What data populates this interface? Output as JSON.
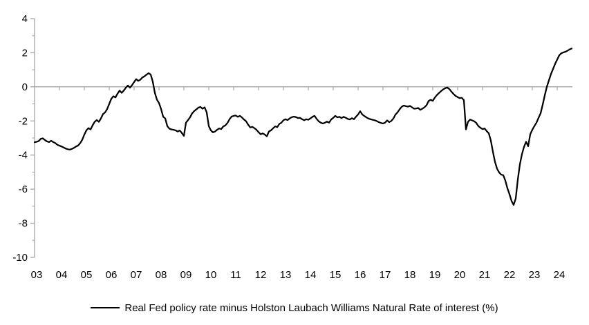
{
  "chart_data": {
    "type": "line",
    "frequency": "monthly",
    "x_start": "2003-01",
    "x_end": "2024-08",
    "x_tick_labels": [
      "03",
      "04",
      "05",
      "06",
      "07",
      "08",
      "09",
      "10",
      "11",
      "12",
      "13",
      "14",
      "15",
      "16",
      "17",
      "18",
      "19",
      "20",
      "21",
      "22",
      "23",
      "24"
    ],
    "y_ticks": [
      4,
      2,
      0,
      -2,
      -4,
      -6,
      -8,
      -10
    ],
    "y_minor_ticks": [
      3,
      1,
      -1,
      -3,
      -5,
      -7,
      -9
    ],
    "ylim": [
      -10,
      4
    ],
    "grid": "zero-line-only",
    "legend_position": "bottom-center",
    "colors": {
      "line": "#000000",
      "axis": "#a6a6a6",
      "text": "#000000",
      "background": "#ffffff"
    },
    "series": [
      {
        "name": "Real Fed policy rate minus Holston Laubach Williams Natural Rate of interest (%)",
        "values": [
          -3.25,
          -3.22,
          -3.18,
          -3.05,
          -3.02,
          -3.12,
          -3.2,
          -3.24,
          -3.16,
          -3.24,
          -3.3,
          -3.4,
          -3.45,
          -3.5,
          -3.56,
          -3.62,
          -3.66,
          -3.68,
          -3.64,
          -3.58,
          -3.5,
          -3.44,
          -3.3,
          -3.1,
          -2.8,
          -2.55,
          -2.42,
          -2.5,
          -2.25,
          -2.05,
          -1.95,
          -2.05,
          -1.85,
          -1.6,
          -1.5,
          -1.3,
          -1.0,
          -0.7,
          -0.55,
          -0.62,
          -0.4,
          -0.22,
          -0.35,
          -0.22,
          -0.05,
          0.08,
          -0.05,
          0.1,
          0.28,
          0.45,
          0.35,
          0.42,
          0.55,
          0.62,
          0.72,
          0.8,
          0.72,
          0.3,
          -0.35,
          -0.75,
          -0.95,
          -1.3,
          -1.75,
          -1.85,
          -2.3,
          -2.45,
          -2.5,
          -2.52,
          -2.55,
          -2.62,
          -2.56,
          -2.7,
          -2.88,
          -2.1,
          -1.95,
          -1.78,
          -1.55,
          -1.42,
          -1.32,
          -1.22,
          -1.18,
          -1.28,
          -1.2,
          -1.5,
          -2.3,
          -2.55,
          -2.67,
          -2.62,
          -2.52,
          -2.44,
          -2.48,
          -2.32,
          -2.26,
          -2.12,
          -1.9,
          -1.74,
          -1.7,
          -1.68,
          -1.76,
          -1.7,
          -1.8,
          -1.92,
          -2.02,
          -2.22,
          -2.38,
          -2.35,
          -2.42,
          -2.52,
          -2.66,
          -2.78,
          -2.73,
          -2.8,
          -2.9,
          -2.62,
          -2.55,
          -2.43,
          -2.32,
          -2.36,
          -2.18,
          -2.1,
          -1.96,
          -1.9,
          -1.95,
          -1.85,
          -1.78,
          -1.75,
          -1.77,
          -1.83,
          -1.82,
          -1.9,
          -1.96,
          -1.9,
          -1.93,
          -1.85,
          -1.76,
          -1.7,
          -1.88,
          -2.02,
          -2.1,
          -2.15,
          -2.1,
          -2.04,
          -2.1,
          -1.92,
          -1.82,
          -1.7,
          -1.79,
          -1.76,
          -1.83,
          -1.76,
          -1.81,
          -1.88,
          -1.91,
          -1.84,
          -1.9,
          -1.75,
          -1.62,
          -1.43,
          -1.62,
          -1.71,
          -1.79,
          -1.86,
          -1.9,
          -1.93,
          -1.96,
          -2.01,
          -2.07,
          -2.12,
          -2.15,
          -2.1,
          -1.97,
          -2.07,
          -2.0,
          -1.86,
          -1.63,
          -1.5,
          -1.32,
          -1.17,
          -1.1,
          -1.13,
          -1.16,
          -1.12,
          -1.2,
          -1.28,
          -1.27,
          -1.24,
          -1.35,
          -1.28,
          -1.2,
          -1.08,
          -0.83,
          -0.76,
          -0.82,
          -0.63,
          -0.48,
          -0.36,
          -0.25,
          -0.15,
          -0.08,
          -0.04,
          -0.13,
          -0.28,
          -0.42,
          -0.53,
          -0.6,
          -0.66,
          -0.64,
          -0.78,
          -2.5,
          -2.05,
          -1.92,
          -1.97,
          -2.02,
          -2.12,
          -2.3,
          -2.4,
          -2.48,
          -2.44,
          -2.6,
          -2.72,
          -3.15,
          -3.8,
          -4.4,
          -4.8,
          -5.02,
          -5.15,
          -5.18,
          -5.5,
          -5.95,
          -6.3,
          -6.7,
          -6.92,
          -6.55,
          -5.45,
          -4.55,
          -3.95,
          -3.52,
          -3.22,
          -3.48,
          -2.78,
          -2.52,
          -2.3,
          -2.1,
          -1.82,
          -1.55,
          -1.05,
          -0.5,
          0.0,
          0.38,
          0.75,
          1.05,
          1.35,
          1.6,
          1.85,
          1.97,
          2.02,
          2.06,
          2.12,
          2.2,
          2.25
        ]
      }
    ]
  },
  "legend": {
    "label": "Real Fed policy rate minus Holston Laubach Williams Natural Rate of interest (%)"
  }
}
